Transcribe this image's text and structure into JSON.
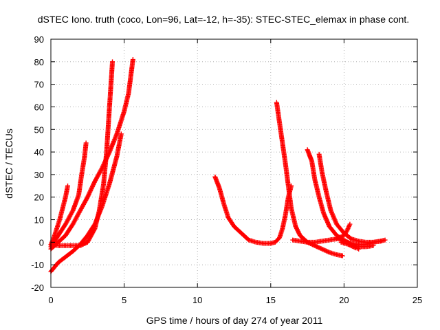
{
  "chart_data": {
    "type": "scatter",
    "title": "dSTEC Iono. truth (coco, Lon=96, Lat=-12, h=-35): STEC-STEC_elemax in phase cont.",
    "xlabel": "GPS time / hours of day 274 of year 2011",
    "ylabel": "dSTEC  / TECUs",
    "xlim": [
      0,
      25
    ],
    "ylim": [
      -20,
      90
    ],
    "xticks": [
      "0",
      "5",
      "10",
      "15",
      "20",
      "25"
    ],
    "yticks": [
      "-20",
      "-10",
      "0",
      "10",
      "20",
      "30",
      "40",
      "50",
      "60",
      "70",
      "80",
      "90"
    ],
    "grid": true,
    "marker": "plus",
    "color": "#ff0000",
    "series": [
      {
        "x": [
          0.0,
          0.2,
          0.4,
          0.6,
          0.8,
          1.0,
          1.15
        ],
        "y": [
          -1,
          2,
          6,
          10,
          15,
          20,
          25
        ]
      },
      {
        "x": [
          0.0,
          0.5,
          1.0,
          1.5,
          1.9,
          2.1,
          2.3,
          2.4
        ],
        "y": [
          -2,
          3,
          8,
          14,
          21,
          30,
          38,
          44
        ]
      },
      {
        "x": [
          0.0,
          0.5,
          1.0,
          1.5,
          2.0,
          2.5,
          3.0,
          3.5,
          4.0,
          4.5,
          5.0,
          5.3,
          5.6
        ],
        "y": [
          -3,
          0,
          3,
          8,
          14,
          20,
          27,
          33,
          40,
          48,
          58,
          66,
          81
        ]
      },
      {
        "x": [
          0.0,
          0.5,
          1.0,
          1.5,
          2.0,
          2.5,
          3.0,
          3.3,
          3.6,
          3.8,
          4.0,
          4.2
        ],
        "y": [
          -1,
          -1.5,
          -1.5,
          -1.5,
          -1.5,
          0,
          6,
          14,
          26,
          40,
          60,
          80
        ]
      },
      {
        "x": [
          0.0,
          0.5,
          1.0,
          1.5,
          2.0,
          2.5,
          3.0,
          3.5,
          4.0,
          4.5,
          4.8
        ],
        "y": [
          -13,
          -9,
          -6.5,
          -4,
          -1,
          3,
          8,
          16,
          26,
          38,
          48
        ]
      },
      {
        "x": [
          11.2,
          11.5,
          11.8,
          12.1,
          12.5,
          13.0,
          13.5,
          14.0,
          14.5,
          15.0,
          15.3,
          15.6,
          15.8,
          16.0,
          16.2,
          16.4
        ],
        "y": [
          29,
          24,
          17,
          11,
          7,
          4,
          1,
          0,
          -0.5,
          -0.5,
          0,
          2,
          6,
          12,
          20,
          25
        ]
      },
      {
        "x": [
          15.4,
          15.6,
          15.8,
          16.0,
          16.2,
          16.4,
          16.7,
          17.0,
          17.5,
          18.0,
          18.5,
          19.0,
          19.5,
          19.9
        ],
        "y": [
          62,
          53,
          44,
          35,
          25,
          15,
          7,
          3,
          0,
          -1.5,
          -3,
          -4.5,
          -5.5,
          -6
        ]
      },
      {
        "x": [
          16.5,
          17.0,
          17.5,
          18.0,
          18.5,
          19.0,
          19.5,
          20.0,
          20.2,
          20.4
        ],
        "y": [
          1,
          0.5,
          0,
          0,
          0.5,
          1,
          1.5,
          3,
          5,
          8
        ]
      },
      {
        "x": [
          17.5,
          17.8,
          18.0,
          18.3,
          18.6,
          19.0,
          19.5,
          20.0,
          20.5,
          21.0,
          21.5,
          22.0
        ],
        "y": [
          41,
          36,
          28,
          20,
          13,
          7,
          3,
          1,
          -1,
          -2,
          -2,
          -1.5
        ]
      },
      {
        "x": [
          18.3,
          18.5,
          18.8,
          19.1,
          19.5,
          20.0,
          20.5,
          21.0,
          21.5,
          22.0,
          22.5,
          22.8
        ],
        "y": [
          39,
          31,
          22,
          14,
          8,
          4,
          1.5,
          0.5,
          0,
          0,
          0.5,
          1
        ]
      },
      {
        "x": [
          19.5,
          20.0,
          20.5,
          21.0,
          21.5,
          22.0,
          22.5
        ],
        "y": [
          2,
          0.5,
          -0.5,
          -1,
          -1,
          0,
          0.5
        ]
      },
      {
        "x": [
          19.8,
          20.3,
          20.8,
          21.0
        ],
        "y": [
          0,
          -1,
          -2.5,
          -3
        ]
      }
    ]
  }
}
